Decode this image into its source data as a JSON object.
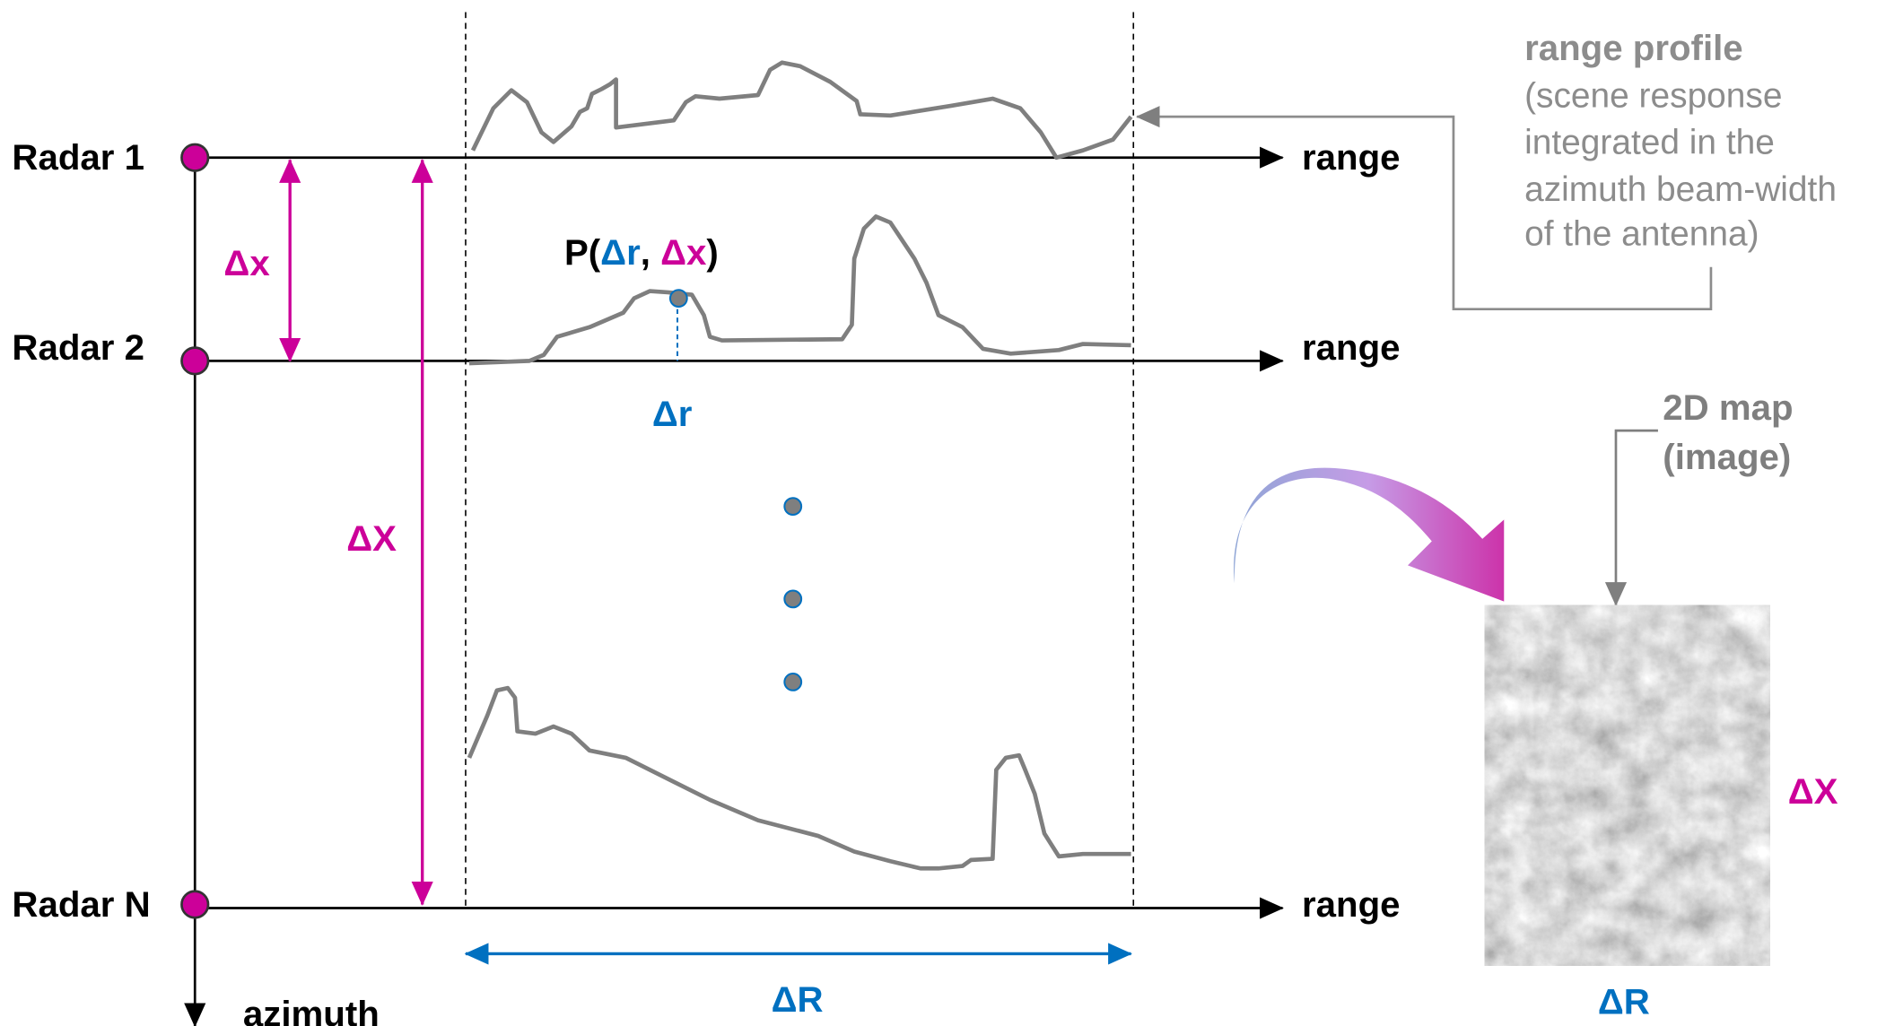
{
  "radars": [
    {
      "label": "Radar 1",
      "axis_label": "range"
    },
    {
      "label": "Radar 2",
      "axis_label": "range"
    },
    {
      "label": "Radar N",
      "axis_label": "range"
    }
  ],
  "azimuth_label": "azimuth",
  "spacing_label": "Δx",
  "total_label": "ΔX",
  "point_label": {
    "prefix": "P(",
    "r": "Δr",
    "sep": ", ",
    "x": "Δx",
    "suffix": ")"
  },
  "range_offset_label": "Δr",
  "range_extent_label": "ΔR",
  "profile_note": {
    "title": "range profile",
    "lines": [
      "(scene response",
      "integrated in the",
      "azimuth beam-width",
      "of the antenna)"
    ]
  },
  "map": {
    "title_lines": [
      "2D map",
      "(image)"
    ],
    "height_label": "ΔX",
    "width_label": "ΔR"
  }
}
